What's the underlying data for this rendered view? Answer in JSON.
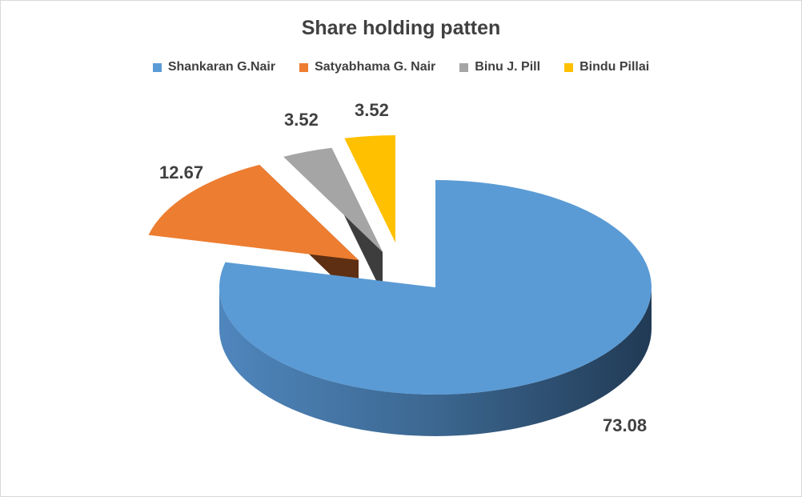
{
  "chart_data": {
    "type": "pie",
    "title": "Share holding patten",
    "legend_position": "top",
    "categories": [
      "Shankaran G.Nair",
      "Satyabhama G. Nair",
      "Binu J. Pill",
      "Bindu Pillai"
    ],
    "values": [
      73.08,
      12.67,
      3.52,
      3.52
    ],
    "labels": [
      "73.08",
      "12.67",
      "3.52",
      "3.52"
    ],
    "colors": [
      "#5b9bd5",
      "#ed7d31",
      "#a5a5a5",
      "#ffc000"
    ],
    "side_colors": [
      "#3f6f9c",
      "#5e2f12",
      "#3d3d3d",
      "#5c4600"
    ],
    "exploded": true,
    "three_d": true
  }
}
